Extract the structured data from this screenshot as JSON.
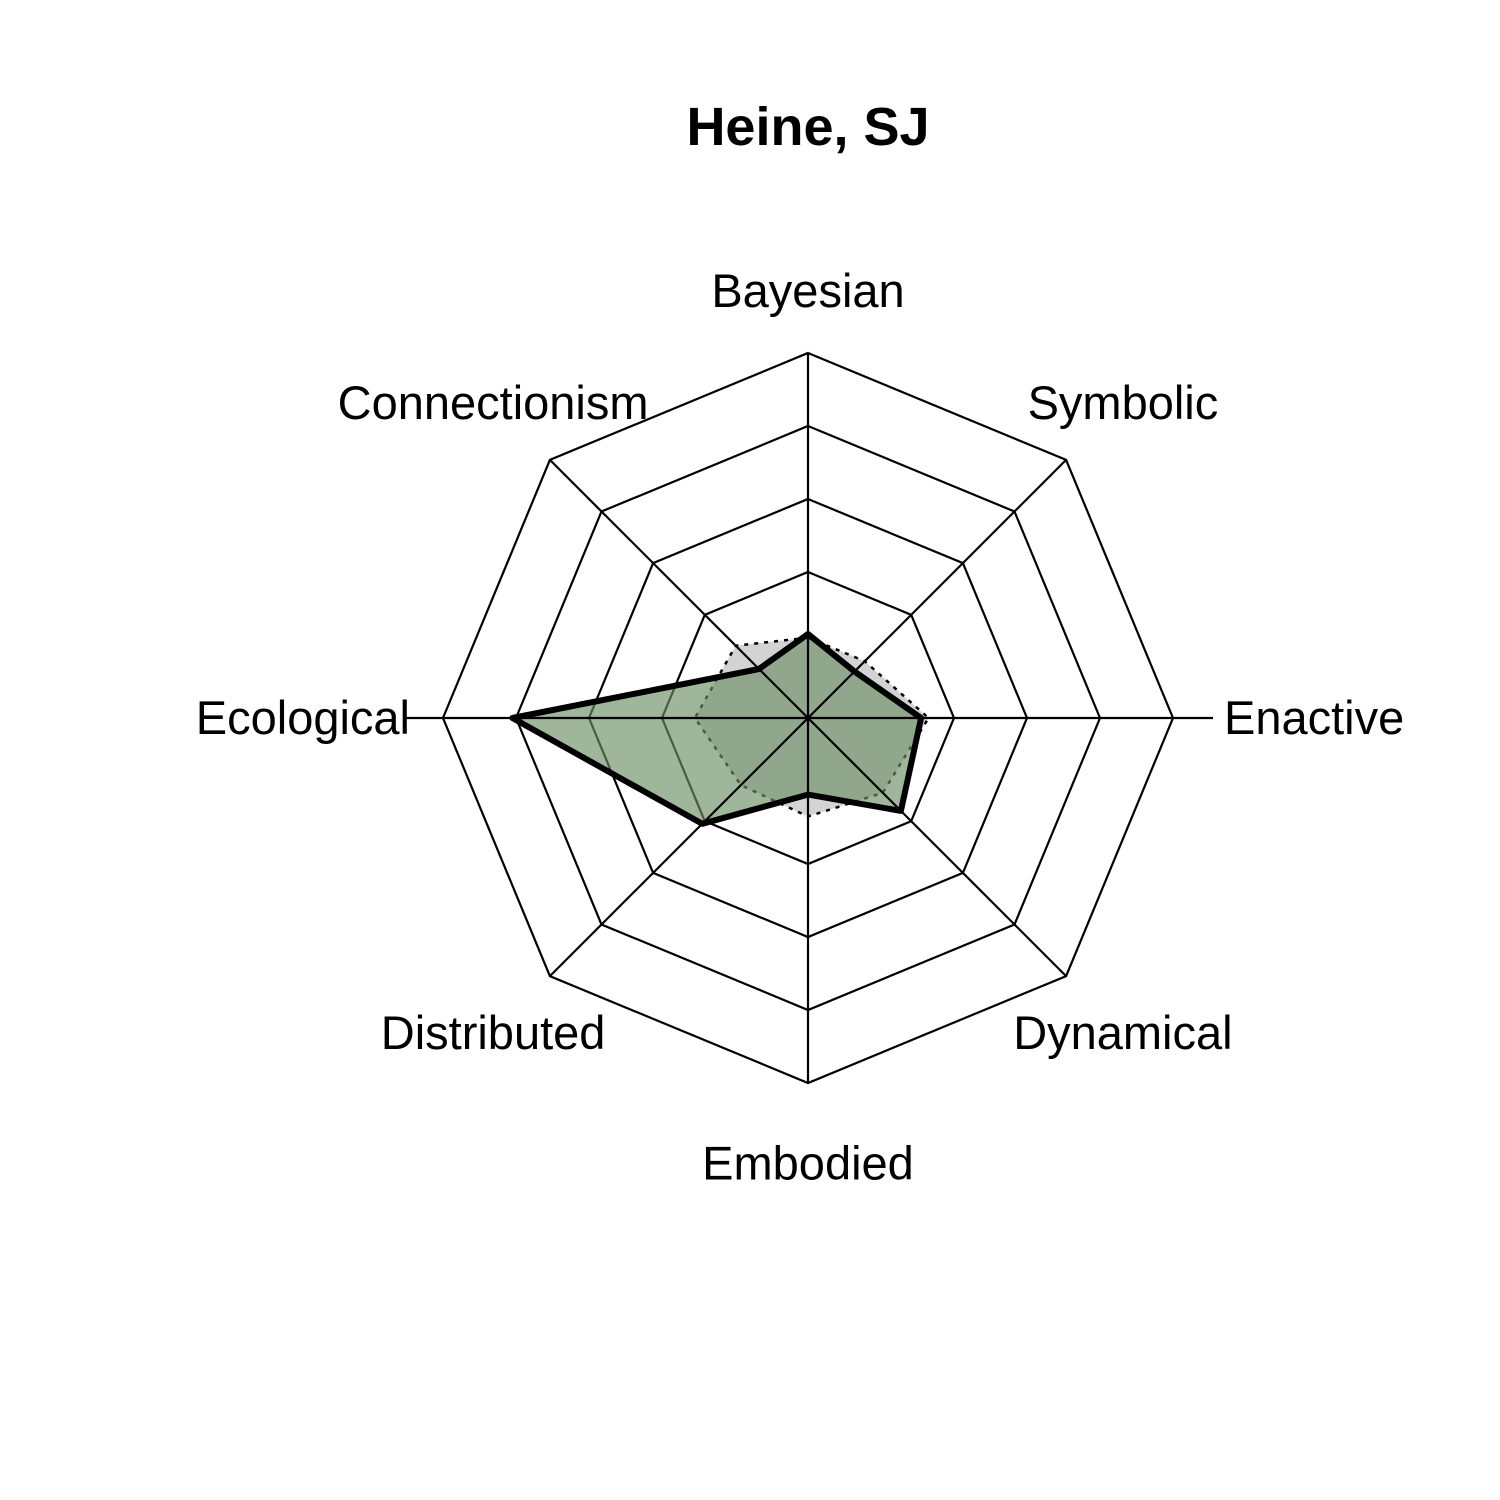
{
  "chart_data": {
    "type": "radar",
    "title": "Heine, SJ",
    "axes": [
      "Bayesian",
      "Symbolic",
      "Enactive",
      "Dynamical",
      "Embodied",
      "Distributed",
      "Ecological",
      "Connectionism"
    ],
    "rlim": [
      0,
      5
    ],
    "grid_levels": 5,
    "grid": true,
    "series": [
      {
        "values": [
          1.1,
          1.1,
          1.65,
          1.45,
          1.35,
          1.3,
          1.55,
          1.4
        ],
        "style": "dotted",
        "fill": "#d3d3d3"
      },
      {
        "values": [
          1.15,
          0.9,
          1.55,
          1.8,
          1.05,
          2.05,
          4.05,
          0.95
        ],
        "style": "solid",
        "fill": "#6b8f64"
      }
    ]
  },
  "colors": {
    "grid": "#000000",
    "reference_fill": "#d3d3d3",
    "profile_fill": "#6b8f64",
    "profile_line": "#000000"
  }
}
